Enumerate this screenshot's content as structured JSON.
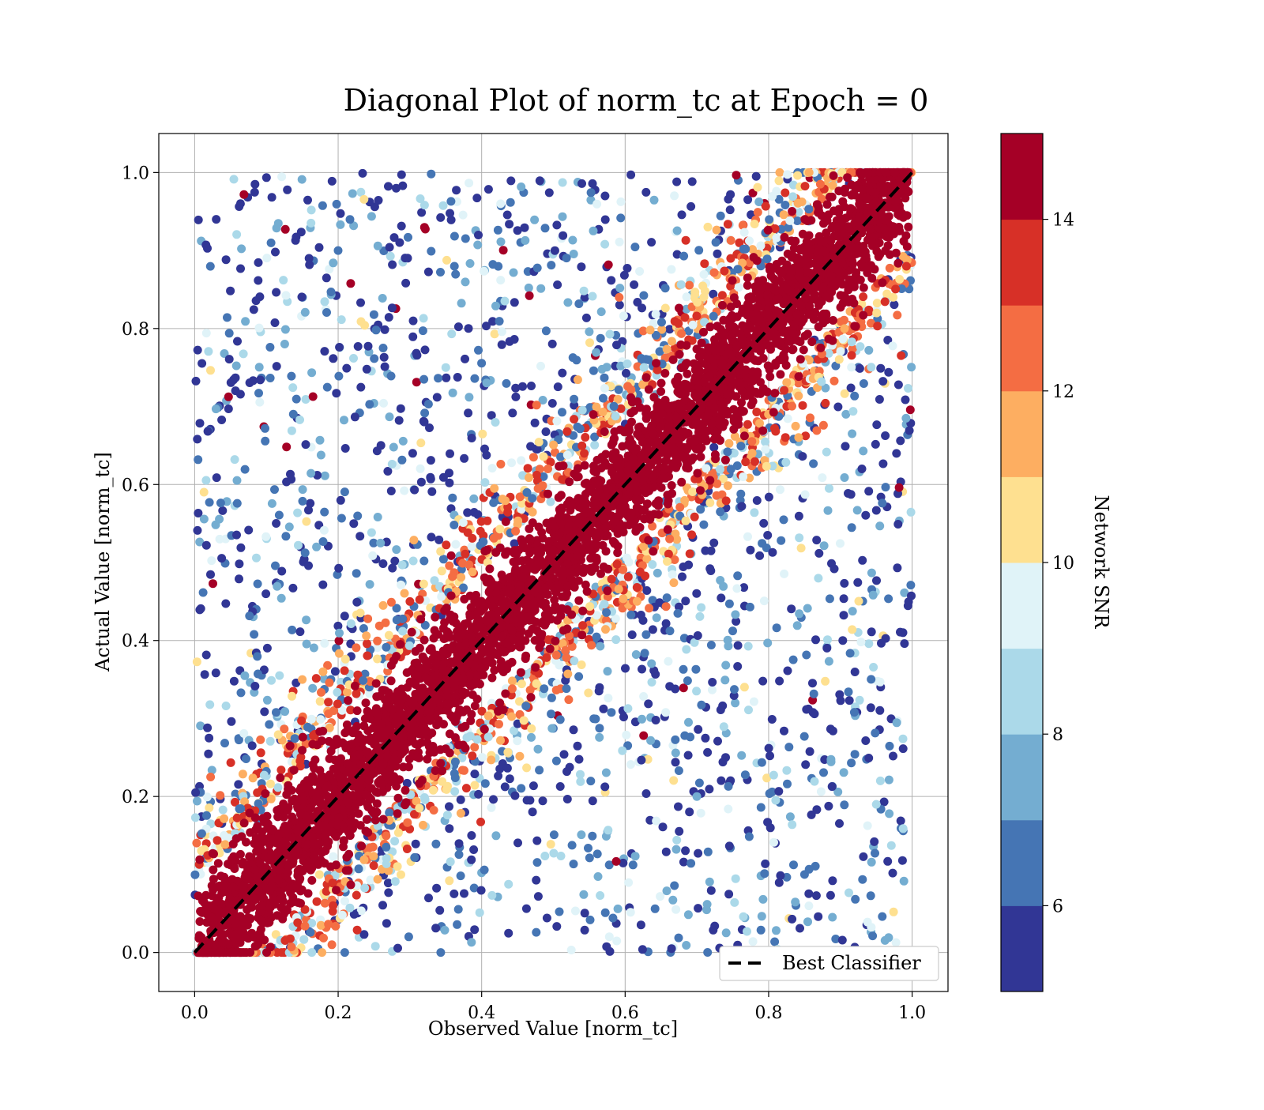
{
  "chart_data": {
    "type": "scatter",
    "title": "Diagonal Plot of norm_tc at Epoch = 0",
    "xlabel": "Observed Value [norm_tc]",
    "ylabel": "Actual Value [norm_tc]",
    "xlim": [
      -0.05,
      1.05
    ],
    "ylim": [
      -0.05,
      1.05
    ],
    "x_ticks": [
      0.0,
      0.2,
      0.4,
      0.6,
      0.8,
      1.0
    ],
    "x_tick_labels": [
      "0.0",
      "0.2",
      "0.4",
      "0.6",
      "0.8",
      "1.0"
    ],
    "y_ticks": [
      0.0,
      0.2,
      0.4,
      0.6,
      0.8,
      1.0
    ],
    "y_tick_labels": [
      "0.0",
      "0.2",
      "0.4",
      "0.6",
      "0.8",
      "1.0"
    ],
    "grid": true,
    "reference_line": {
      "label": "Best Classifier",
      "x": [
        0.0,
        1.0
      ],
      "y": [
        0.0,
        1.0
      ],
      "style": "dashed",
      "color": "#000000"
    },
    "legend": {
      "location": "lower-right",
      "entries": [
        "Best Classifier"
      ]
    },
    "colorbar": {
      "label": "Network SNR",
      "range": [
        5,
        15
      ],
      "ticks": [
        6,
        8,
        10,
        12,
        14
      ],
      "tick_labels": [
        "6",
        "8",
        "10",
        "12",
        "14"
      ],
      "colors": [
        "#313695",
        "#4575b4",
        "#74add1",
        "#abd9e9",
        "#e0f3f8",
        "#fee090",
        "#fdae61",
        "#f46d43",
        "#d73027",
        "#a50026"
      ]
    },
    "series": [
      {
        "distribution": "points concentrated in a band around y = x (width about ±0.12); high SNR near the diagonal, low SNR scattered off-diagonal within the unit square",
        "sample_points": [
          {
            "x": 0.05,
            "y": 0.06,
            "snr": 15
          },
          {
            "x": 0.2,
            "y": 0.21,
            "snr": 15
          },
          {
            "x": 0.4,
            "y": 0.39,
            "snr": 15
          },
          {
            "x": 0.6,
            "y": 0.61,
            "snr": 15
          },
          {
            "x": 0.8,
            "y": 0.8,
            "snr": 15
          },
          {
            "x": 0.95,
            "y": 0.96,
            "snr": 15
          },
          {
            "x": 0.3,
            "y": 0.45,
            "snr": 13
          },
          {
            "x": 0.55,
            "y": 0.42,
            "snr": 12
          },
          {
            "x": 0.15,
            "y": 0.35,
            "snr": 11
          },
          {
            "x": 0.35,
            "y": 0.75,
            "snr": 8
          },
          {
            "x": 0.2,
            "y": 0.9,
            "snr": 6
          },
          {
            "x": 0.7,
            "y": 0.2,
            "snr": 7
          },
          {
            "x": 0.85,
            "y": 0.1,
            "snr": 6
          },
          {
            "x": 0.03,
            "y": 0.94,
            "snr": 5
          },
          {
            "x": 0.95,
            "y": 0.19,
            "snr": 8
          },
          {
            "x": 0.93,
            "y": 0.62,
            "snr": 5
          }
        ]
      }
    ]
  }
}
